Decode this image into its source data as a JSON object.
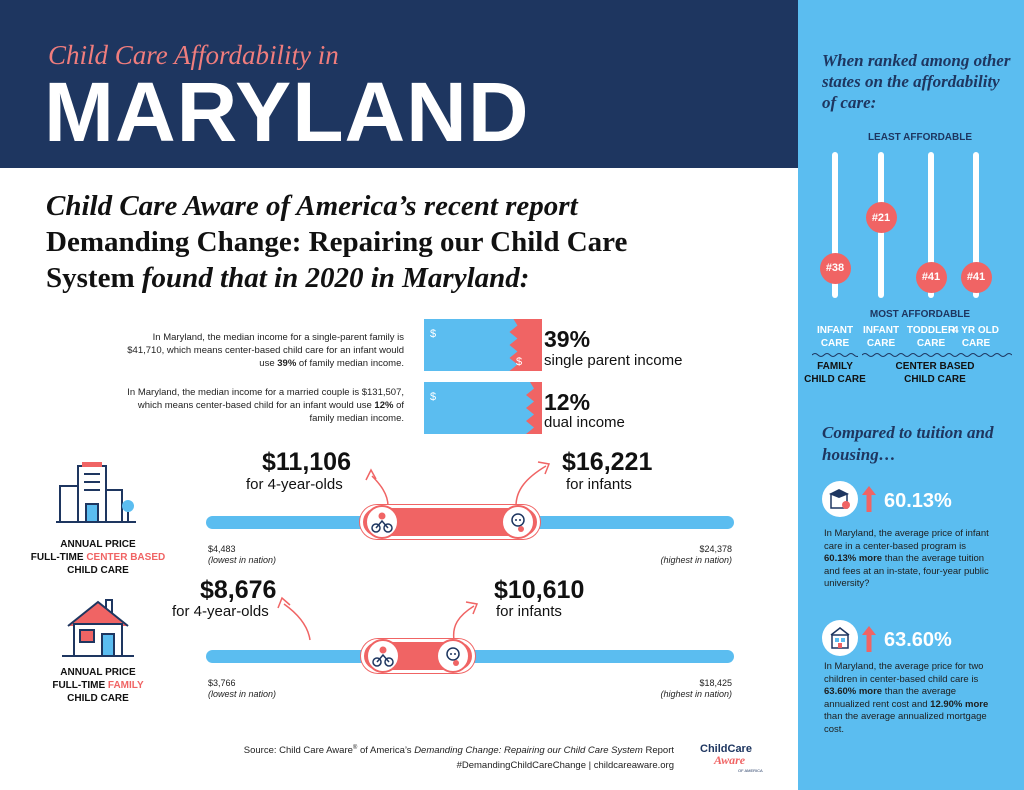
{
  "header": {
    "subtitle": "Child Care Affordability in",
    "title": "MARYLAND"
  },
  "intro": {
    "line1": "Child Care Aware of America’s recent report",
    "report_title_1": "Demanding Change: Repairing our Child Care",
    "report_title_2": "System",
    "line3_rest": " found that in 2020 in Maryland:"
  },
  "income": [
    {
      "description": "In Maryland, the median income for a single-parent family is $41,710, which means center-based child care for an infant would use",
      "highlight": "39%",
      "description_end": " of family median income.",
      "percent": "39%",
      "label": "single parent income",
      "share": 0.39,
      "symbol_left": "$",
      "symbol_right": "$"
    },
    {
      "description": "In Maryland, the median income for a married couple is $131,507, which means center-based child for an infant would use",
      "highlight": "12%",
      "description_end": " of family median income.",
      "percent": "12%",
      "label": "dual income",
      "share": 0.12,
      "symbol_left": "$",
      "symbol_right": ""
    }
  ],
  "center_based": {
    "side_label_1": "ANNUAL PRICE",
    "side_label_2a": "FULL-TIME ",
    "side_label_2b": "CENTER BASED",
    "side_label_3": "CHILD CARE",
    "price_4yr": "$11,106",
    "price_4yr_label": "for 4-year-olds",
    "price_infant": "$16,221",
    "price_infant_label": "for infants",
    "low": "$4,483",
    "low_note": "(lowest in nation)",
    "high": "$24,378",
    "high_note": "(highest in nation)",
    "values": {
      "min": 4483,
      "max": 24378,
      "four_year": 11106,
      "infant": 16221
    }
  },
  "family": {
    "side_label_1": "ANNUAL PRICE",
    "side_label_2a": "FULL-TIME ",
    "side_label_2b": "FAMILY",
    "side_label_3": "CHILD CARE",
    "price_4yr": "$8,676",
    "price_4yr_label": "for 4-year-olds",
    "price_infant": "$10,610",
    "price_infant_label": "for infants",
    "low": "$3,766",
    "low_note": "(lowest in nation)",
    "high": "$18,425",
    "high_note": "(highest in nation)",
    "values": {
      "min": 3766,
      "max": 18425,
      "four_year": 8676,
      "infant": 10610
    }
  },
  "footer": {
    "source_a": "Source: Child Care Aware",
    "source_reg": "®",
    "source_b": " of America’s ",
    "source_italic": "Demanding Change: Repairing our Child Care System",
    "source_c": " Report",
    "hashtag": "#DemandingChildCareChange | childcareaware.org",
    "logo_line1": "ChildCare",
    "logo_line2": "Aware",
    "logo_line3": "OF AMERICA"
  },
  "ranking": {
    "title": "When ranked among other states on the affordability of care:",
    "least": "LEAST AFFORDABLE",
    "most": "MOST AFFORDABLE",
    "columns": [
      {
        "rank": "#38",
        "value": 38,
        "label_1": "INFANT",
        "label_2": "CARE"
      },
      {
        "rank": "#21",
        "value": 21,
        "label_1": "INFANT",
        "label_2": "CARE"
      },
      {
        "rank": "#41",
        "value": 41,
        "label_1": "TODDLER",
        "label_2": "CARE"
      },
      {
        "rank": "#41",
        "value": 41,
        "label_1": "4 YR OLD",
        "label_2": "CARE"
      }
    ],
    "group_family_1": "FAMILY",
    "group_family_2": "CHILD CARE",
    "group_center_1": "CENTER BASED",
    "group_center_2": "CHILD CARE"
  },
  "comparison": {
    "title": "Compared to tuition and housing…",
    "tuition": {
      "percent": "60.13%",
      "text_a": "In Maryland, the average price of infant care in a center-based program is ",
      "text_bold": "60.13% more",
      "text_b": " than the average tuition and fees at an in-state, four-year public university?"
    },
    "housing": {
      "percent": "63.60%",
      "text_a": "In Maryland, the average price for two children in center-based child care is ",
      "text_bold": "63.60% more",
      "text_b": " than the average annualized rent cost and ",
      "text_bold2": "12.90% more",
      "text_c": " than the average annualized mortgage cost."
    }
  },
  "colors": {
    "navy": "#1e3660",
    "coral": "#f06464",
    "sky": "#5bbdf0"
  }
}
